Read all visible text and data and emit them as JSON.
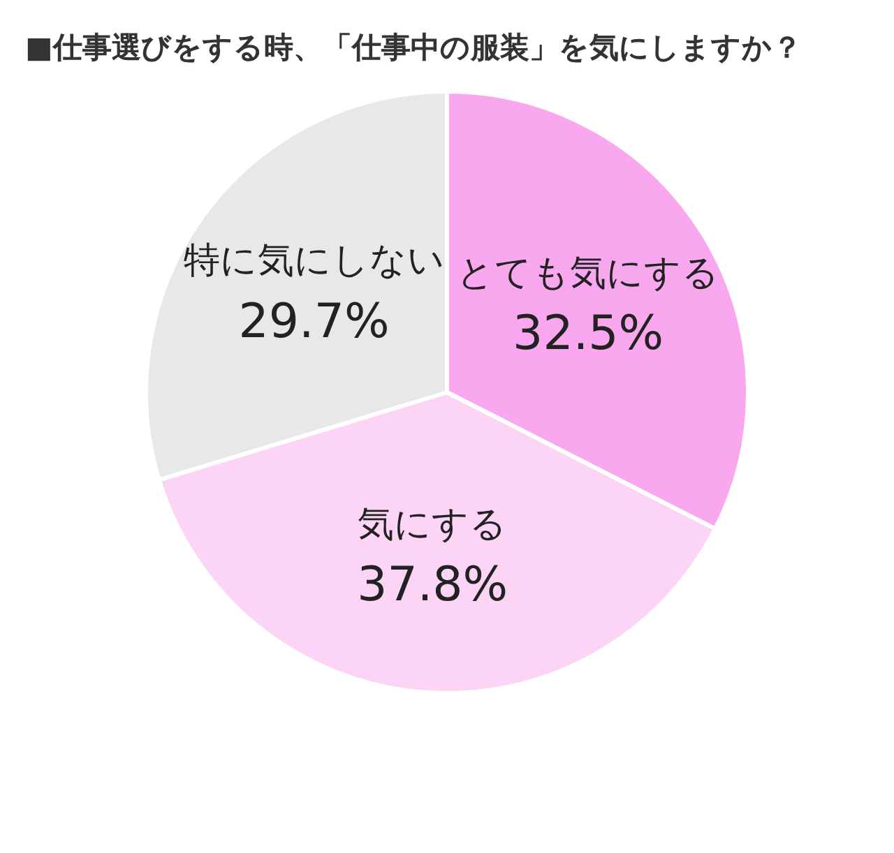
{
  "chart_data": {
    "type": "pie",
    "title": "■仕事選びをする時、「仕事中の服装」を気にしますか？",
    "categories": [
      "とても気にする",
      "気にする",
      "特に気にしない"
    ],
    "values": [
      32.5,
      37.8,
      29.7
    ],
    "colors": [
      "#f9a8f0",
      "#fcd5f6",
      "#e8e8e8"
    ],
    "value_labels": [
      "32.5%",
      "37.8%",
      "29.7%"
    ],
    "legend": false
  }
}
